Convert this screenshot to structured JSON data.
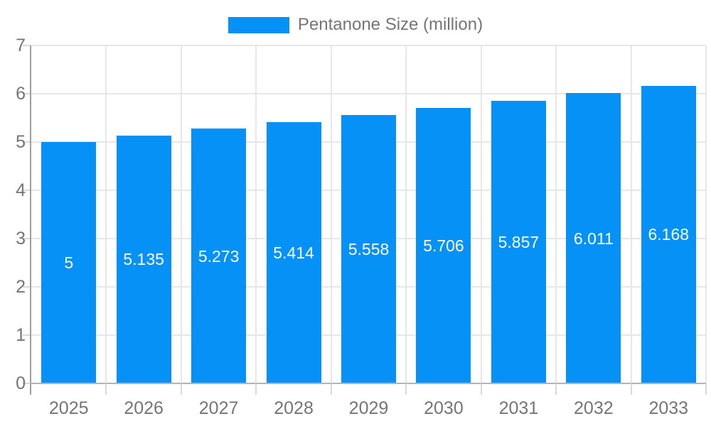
{
  "chart_data": {
    "type": "bar",
    "title": "",
    "legend": "Pentanone Size (million)",
    "legend_position": "top-center",
    "categories": [
      "2025",
      "2026",
      "2027",
      "2028",
      "2029",
      "2030",
      "2031",
      "2032",
      "2033"
    ],
    "series": [
      {
        "name": "Pentanone Size (million)",
        "values": [
          5,
          5.135,
          5.273,
          5.414,
          5.558,
          5.706,
          5.857,
          6.011,
          6.168
        ],
        "value_labels": [
          "5",
          "5.135",
          "5.273",
          "5.414",
          "5.558",
          "5.706",
          "5.857",
          "6.011",
          "6.168"
        ]
      }
    ],
    "xlabel": "",
    "ylabel": "",
    "ylim": [
      0,
      7
    ],
    "ytick_step": 1,
    "ytick_labels": [
      "0",
      "1",
      "2",
      "3",
      "4",
      "5",
      "6",
      "7"
    ],
    "grid": true,
    "colors": {
      "bar": "#0591f5",
      "bar_value_text": "#ffffff",
      "axis_text": "#757575",
      "legend_text": "#757575",
      "gridline": "#e7e7e7",
      "axis_line": "#9e9e9e",
      "baseline": "#b3b3b3",
      "tick": "#d9d9d9",
      "background": "#ffffff"
    }
  }
}
